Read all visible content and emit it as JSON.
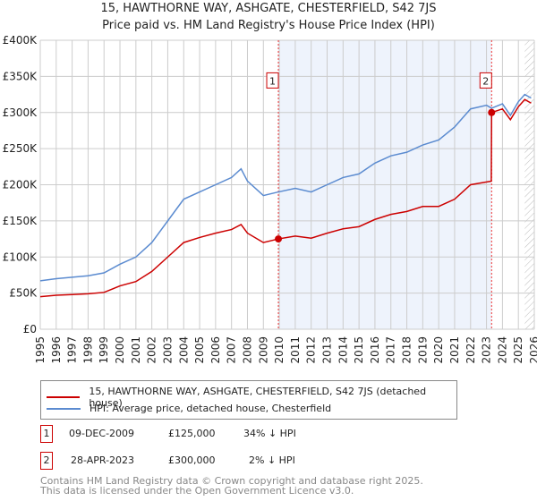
{
  "title": "15, HAWTHORNE WAY, ASHGATE, CHESTERFIELD, S42 7JS",
  "subtitle": "Price paid vs. HM Land Registry's House Price Index (HPI)",
  "chart_data": {
    "type": "line",
    "xlim": [
      1995,
      2026
    ],
    "ylim": [
      0,
      400000
    ],
    "yticks": [
      {
        "v": 0,
        "l": "£0"
      },
      {
        "v": 50000,
        "l": "£50K"
      },
      {
        "v": 100000,
        "l": "£100K"
      },
      {
        "v": 150000,
        "l": "£150K"
      },
      {
        "v": 200000,
        "l": "£200K"
      },
      {
        "v": 250000,
        "l": "£250K"
      },
      {
        "v": 300000,
        "l": "£300K"
      },
      {
        "v": 350000,
        "l": "£350K"
      },
      {
        "v": 400000,
        "l": "£400K"
      }
    ],
    "xticks": [
      "1995",
      "1996",
      "1997",
      "1998",
      "1999",
      "2000",
      "2001",
      "2002",
      "2003",
      "2004",
      "2005",
      "2006",
      "2007",
      "2008",
      "2009",
      "2010",
      "2011",
      "2012",
      "2013",
      "2014",
      "2015",
      "2016",
      "2017",
      "2018",
      "2019",
      "2020",
      "2021",
      "2022",
      "2023",
      "2024",
      "2025",
      "2026"
    ],
    "series": [
      {
        "name": "15, HAWTHORNE WAY, ASHGATE, CHESTERFIELD, S42 7JS (detached house)",
        "color": "#cc0000",
        "x": [
          1995,
          1996,
          1997,
          1998,
          1999,
          2000,
          2001,
          2002,
          2003,
          2004,
          2005,
          2006,
          2007,
          2007.6,
          2008,
          2009,
          2009.94,
          2011,
          2012,
          2013,
          2014,
          2015,
          2016,
          2017,
          2018,
          2019,
          2020,
          2021,
          2022,
          2023.3,
          2023.32,
          2024,
          2024.5,
          2025,
          2025.4,
          2025.8
        ],
        "y": [
          45000,
          47000,
          48000,
          49000,
          51000,
          60000,
          66000,
          80000,
          100000,
          120000,
          127000,
          133000,
          138000,
          145000,
          133000,
          120000,
          125000,
          129000,
          126000,
          133000,
          139000,
          142000,
          152000,
          159000,
          163000,
          170000,
          170000,
          180000,
          200000,
          205000,
          300000,
          305000,
          290000,
          308000,
          318000,
          313000
        ]
      },
      {
        "name": "HPI: Average price, detached house, Chesterfield",
        "color": "#5b8bd0",
        "x": [
          1995,
          1996,
          1997,
          1998,
          1999,
          2000,
          2001,
          2002,
          2003,
          2004,
          2005,
          2006,
          2007,
          2007.6,
          2008,
          2009,
          2009.94,
          2011,
          2012,
          2013,
          2014,
          2015,
          2016,
          2017,
          2018,
          2019,
          2020,
          2021,
          2022,
          2023,
          2023.32,
          2024,
          2024.5,
          2025,
          2025.4,
          2025.8
        ],
        "y": [
          67000,
          70000,
          72000,
          74000,
          78000,
          90000,
          100000,
          120000,
          150000,
          180000,
          190000,
          200000,
          210000,
          222000,
          205000,
          185000,
          190000,
          195000,
          190000,
          200000,
          210000,
          215000,
          230000,
          240000,
          245000,
          255000,
          262000,
          280000,
          305000,
          310000,
          306000,
          312000,
          296000,
          315000,
          325000,
          320000
        ]
      }
    ],
    "sales": [
      {
        "id": "1",
        "x": 2009.94,
        "y": 125000
      },
      {
        "id": "2",
        "x": 2023.32,
        "y": 300000
      }
    ],
    "forecast_from": 2025.4
  },
  "legend": [
    "15, HAWTHORNE WAY, ASHGATE, CHESTERFIELD, S42 7JS (detached house)",
    "HPI: Average price, detached house, Chesterfield"
  ],
  "table": [
    {
      "id": "1",
      "date": "09-DEC-2009",
      "price": "£125,000",
      "hpi": "34% ↓ HPI"
    },
    {
      "id": "2",
      "date": "28-APR-2023",
      "price": "£300,000",
      "hpi": "2% ↓ HPI"
    }
  ],
  "footer": [
    "Contains HM Land Registry data © Crown copyright and database right 2025.",
    "This data is licensed under the Open Government Licence v3.0."
  ]
}
